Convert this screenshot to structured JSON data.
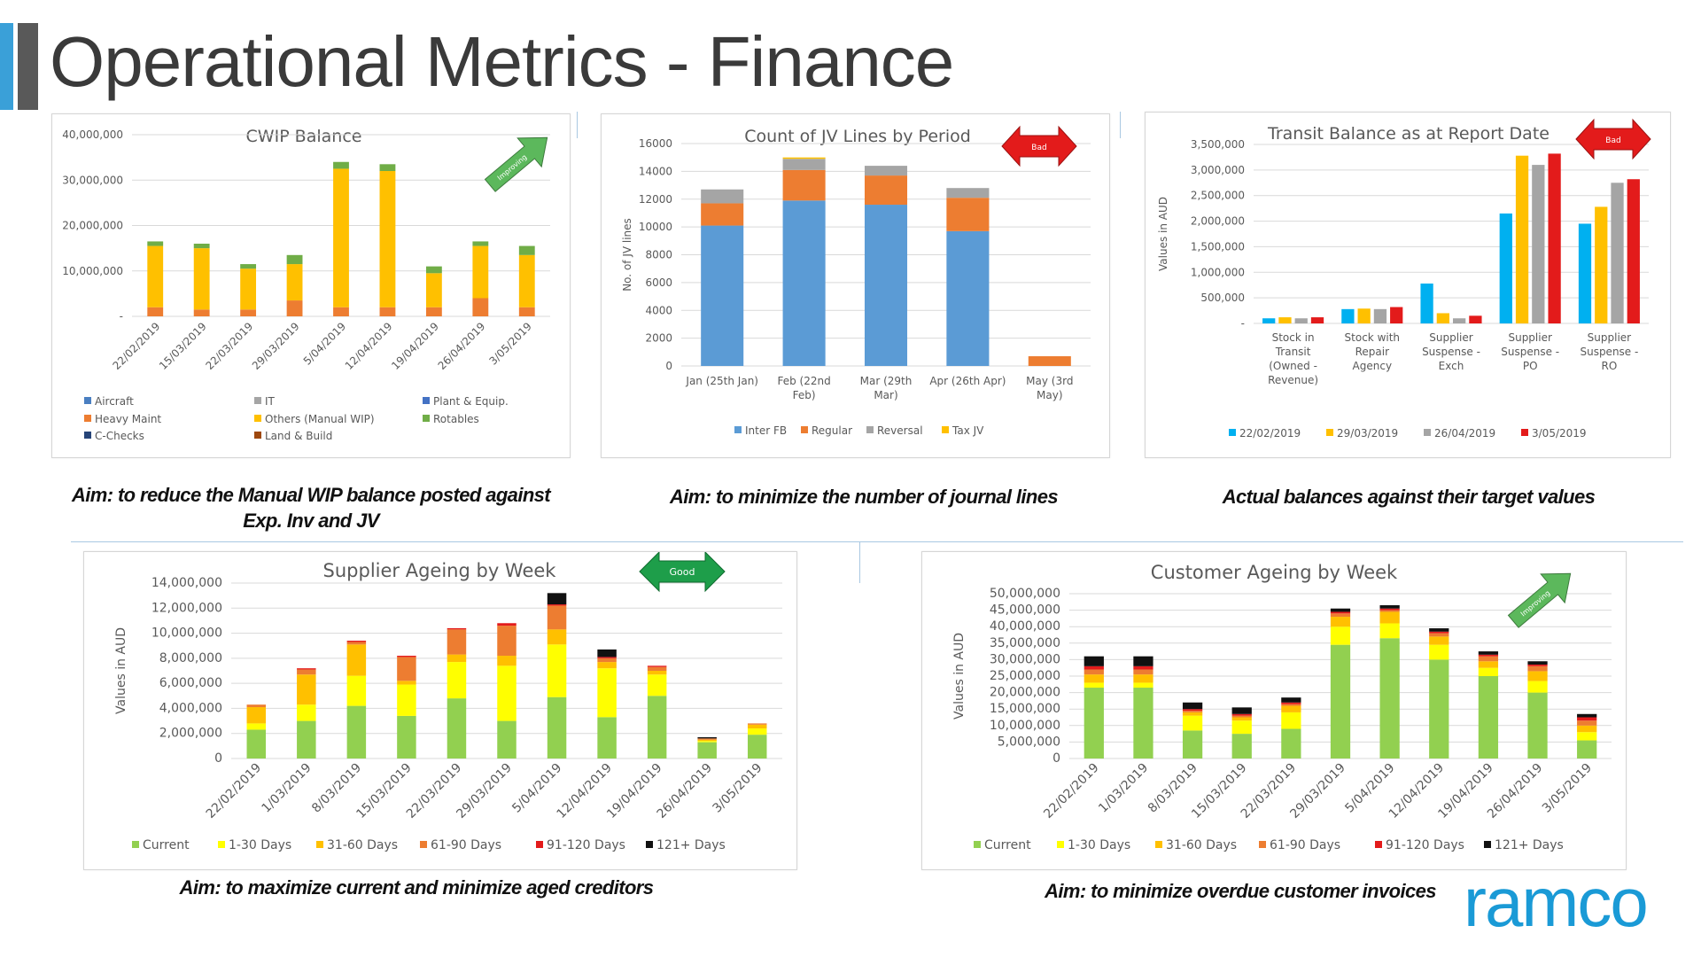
{
  "page": {
    "title": "Operational Metrics - Finance",
    "logo": "ramco"
  },
  "aims": {
    "cwip": "Aim: to reduce the Manual WIP balance posted against Exp. Inv and JV",
    "jv": "Aim: to minimize the number of journal lines",
    "transit": "Actual balances against their target values",
    "supplier": "Aim: to maximize current and minimize aged creditors",
    "customer": "Aim: to minimize overdue customer invoices"
  },
  "badges": {
    "cwip": {
      "label": "Improving",
      "color": "#5cb85c"
    },
    "jv": {
      "label": "Bad",
      "color": "#e31b1b"
    },
    "transit": {
      "label": "Bad",
      "color": "#e31b1b"
    },
    "supplier": {
      "label": "Good",
      "color": "#1e9e4a"
    },
    "customer": {
      "label": "Improving",
      "color": "#5cb85c"
    }
  },
  "chart_data": [
    {
      "id": "cwip",
      "type": "bar",
      "stacked": true,
      "title": "CWIP Balance",
      "ylim": [
        0,
        40000000
      ],
      "yticks": [
        "-",
        "10,000,000",
        "20,000,000",
        "30,000,000",
        "40,000,000"
      ],
      "categories": [
        "22/02/2019",
        "15/03/2019",
        "22/03/2019",
        "29/03/2019",
        "5/04/2019",
        "12/04/2019",
        "19/04/2019",
        "26/04/2019",
        "3/05/2019"
      ],
      "series": [
        {
          "name": "Aircraft",
          "color": "#4a7fc1",
          "values": [
            0,
            0,
            0,
            0,
            0,
            0,
            0,
            0,
            0
          ]
        },
        {
          "name": "Heavy Maint",
          "color": "#ed7d31",
          "values": [
            2000000,
            1500000,
            1500000,
            3500000,
            2000000,
            2000000,
            2000000,
            4000000,
            2000000
          ]
        },
        {
          "name": "IT",
          "color": "#a5a5a5",
          "values": [
            0,
            0,
            0,
            0,
            0,
            0,
            0,
            0,
            0
          ]
        },
        {
          "name": "Others (Manual WIP)",
          "color": "#ffc000",
          "values": [
            13500000,
            13500000,
            9000000,
            8000000,
            30500000,
            30000000,
            7500000,
            11500000,
            11500000
          ]
        },
        {
          "name": "Plant & Equip.",
          "color": "#4472c4",
          "values": [
            0,
            0,
            0,
            0,
            0,
            0,
            0,
            0,
            0
          ]
        },
        {
          "name": "Rotables",
          "color": "#70ad47",
          "values": [
            1000000,
            1000000,
            1000000,
            2000000,
            1500000,
            1500000,
            1500000,
            1000000,
            2000000
          ]
        },
        {
          "name": "C-Checks",
          "color": "#264478",
          "values": [
            0,
            0,
            0,
            0,
            0,
            0,
            0,
            0,
            0
          ]
        },
        {
          "name": "Land & Build",
          "color": "#9e480e",
          "values": [
            0,
            0,
            0,
            0,
            0,
            0,
            0,
            0,
            0
          ]
        }
      ]
    },
    {
      "id": "jv",
      "type": "bar",
      "stacked": true,
      "title": "Count of JV Lines by Period",
      "ylabel": "No. of JV lines",
      "ylim": [
        0,
        16000
      ],
      "yticks": [
        "0",
        "2000",
        "4000",
        "6000",
        "8000",
        "10000",
        "12000",
        "14000",
        "16000"
      ],
      "categories": [
        [
          "Jan (25th Jan)"
        ],
        [
          "Feb (22nd",
          "Feb)"
        ],
        [
          "Mar (29th",
          "Mar)"
        ],
        [
          "Apr (26th Apr)"
        ],
        [
          "May (3rd",
          "May)"
        ]
      ],
      "series": [
        {
          "name": "Inter FB",
          "color": "#5b9bd5",
          "values": [
            10100,
            11900,
            11600,
            9700,
            0
          ]
        },
        {
          "name": "Regular",
          "color": "#ed7d31",
          "values": [
            1600,
            2200,
            2100,
            2400,
            700
          ]
        },
        {
          "name": "Reversal",
          "color": "#a5a5a5",
          "values": [
            1000,
            800,
            700,
            700,
            0
          ]
        },
        {
          "name": "Tax JV",
          "color": "#ffc000",
          "values": [
            0,
            100,
            0,
            0,
            0
          ]
        }
      ]
    },
    {
      "id": "transit",
      "type": "bar",
      "stacked": false,
      "title": "Transit Balance as at Report Date",
      "ylabel": "Values in AUD",
      "ylim": [
        0,
        3500000
      ],
      "yticks": [
        "-",
        "500,000",
        "1,000,000",
        "1,500,000",
        "2,000,000",
        "2,500,000",
        "3,000,000",
        "3,500,000"
      ],
      "categories": [
        [
          "Stock in",
          "Transit",
          "(Owned -",
          "Revenue)"
        ],
        [
          "Stock with",
          "Repair",
          "Agency"
        ],
        [
          "Supplier",
          "Suspense -",
          "Exch"
        ],
        [
          "Supplier",
          "Suspense -",
          "PO"
        ],
        [
          "Supplier",
          "Suspense -",
          "RO"
        ]
      ],
      "series": [
        {
          "name": "22/02/2019",
          "color": "#00b0f0",
          "values": [
            100000,
            280000,
            780000,
            2150000,
            1950000
          ]
        },
        {
          "name": "29/03/2019",
          "color": "#ffc000",
          "values": [
            120000,
            290000,
            200000,
            3280000,
            2280000
          ]
        },
        {
          "name": "26/04/2019",
          "color": "#a5a5a5",
          "values": [
            100000,
            280000,
            100000,
            3100000,
            2750000
          ]
        },
        {
          "name": "3/05/2019",
          "color": "#e31b1b",
          "values": [
            120000,
            320000,
            150000,
            3320000,
            2820000
          ]
        }
      ]
    },
    {
      "id": "supplier",
      "type": "bar",
      "stacked": true,
      "title": "Supplier Ageing by Week",
      "ylabel": "Values in AUD",
      "ylim": [
        0,
        14000000
      ],
      "yticks": [
        "0",
        "2,000,000",
        "4,000,000",
        "6,000,000",
        "8,000,000",
        "10,000,000",
        "12,000,000",
        "14,000,000"
      ],
      "categories": [
        "22/02/2019",
        "1/03/2019",
        "8/03/2019",
        "15/03/2019",
        "22/03/2019",
        "29/03/2019",
        "5/04/2019",
        "12/04/2019",
        "19/04/2019",
        "26/04/2019",
        "3/05/2019"
      ],
      "series": [
        {
          "name": "Current",
          "color": "#92d050",
          "values": [
            2300000,
            3000000,
            4200000,
            3400000,
            4800000,
            3000000,
            4900000,
            3300000,
            5000000,
            1300000,
            1900000
          ]
        },
        {
          "name": "1-30 Days",
          "color": "#ffff00",
          "values": [
            500000,
            1300000,
            2400000,
            2500000,
            2900000,
            4400000,
            4200000,
            3900000,
            1700000,
            100000,
            500000
          ]
        },
        {
          "name": "31-60 Days",
          "color": "#ffc000",
          "values": [
            1300000,
            2400000,
            2500000,
            300000,
            600000,
            800000,
            1200000,
            500000,
            300000,
            100000,
            300000
          ]
        },
        {
          "name": "61-90 Days",
          "color": "#ed7d31",
          "values": [
            200000,
            400000,
            200000,
            1900000,
            2000000,
            2400000,
            1900000,
            300000,
            300000,
            100000,
            100000
          ]
        },
        {
          "name": "91-120 Days",
          "color": "#e31b1b",
          "values": [
            0,
            100000,
            100000,
            100000,
            100000,
            200000,
            100000,
            100000,
            100000,
            0,
            0
          ]
        },
        {
          "name": "121+ Days",
          "color": "#111111",
          "values": [
            0,
            0,
            0,
            0,
            0,
            0,
            900000,
            600000,
            0,
            100000,
            0
          ]
        }
      ]
    },
    {
      "id": "customer",
      "type": "bar",
      "stacked": true,
      "title": "Customer Ageing by Week",
      "ylabel": "Values in AUD",
      "ylim": [
        0,
        50000000
      ],
      "yticks": [
        "0",
        "5,000,000",
        "10,000,000",
        "15,000,000",
        "20,000,000",
        "25,000,000",
        "30,000,000",
        "35,000,000",
        "40,000,000",
        "45,000,000",
        "50,000,000"
      ],
      "categories": [
        "22/02/2019",
        "1/03/2019",
        "8/03/2019",
        "15/03/2019",
        "22/03/2019",
        "29/03/2019",
        "5/04/2019",
        "12/04/2019",
        "19/04/2019",
        "26/04/2019",
        "3/05/2019"
      ],
      "series": [
        {
          "name": "Current",
          "color": "#92d050",
          "values": [
            21500000,
            21500000,
            8500000,
            7500000,
            9000000,
            34500000,
            36500000,
            30000000,
            25000000,
            20000000,
            5500000
          ]
        },
        {
          "name": "1-30 Days",
          "color": "#ffff00",
          "values": [
            1500000,
            1500000,
            4500000,
            4000000,
            5000000,
            5500000,
            4500000,
            4500000,
            2500000,
            3500000,
            2500000
          ]
        },
        {
          "name": "31-60 Days",
          "color": "#ffc000",
          "values": [
            2500000,
            2500000,
            1000000,
            1000000,
            2000000,
            3000000,
            3500000,
            2500000,
            2000000,
            3000000,
            2000000
          ]
        },
        {
          "name": "61-90 Days",
          "color": "#ed7d31",
          "values": [
            1500000,
            1500000,
            500000,
            500000,
            500000,
            1000000,
            500000,
            1000000,
            1500000,
            1500000,
            1500000
          ]
        },
        {
          "name": "91-120 Days",
          "color": "#e31b1b",
          "values": [
            1000000,
            1000000,
            500000,
            500000,
            500000,
            500000,
            500000,
            500000,
            500000,
            500000,
            1000000
          ]
        },
        {
          "name": "121+ Days",
          "color": "#111111",
          "values": [
            3000000,
            3000000,
            2000000,
            2000000,
            1500000,
            1000000,
            1000000,
            1000000,
            1000000,
            1000000,
            1000000
          ]
        }
      ]
    }
  ]
}
